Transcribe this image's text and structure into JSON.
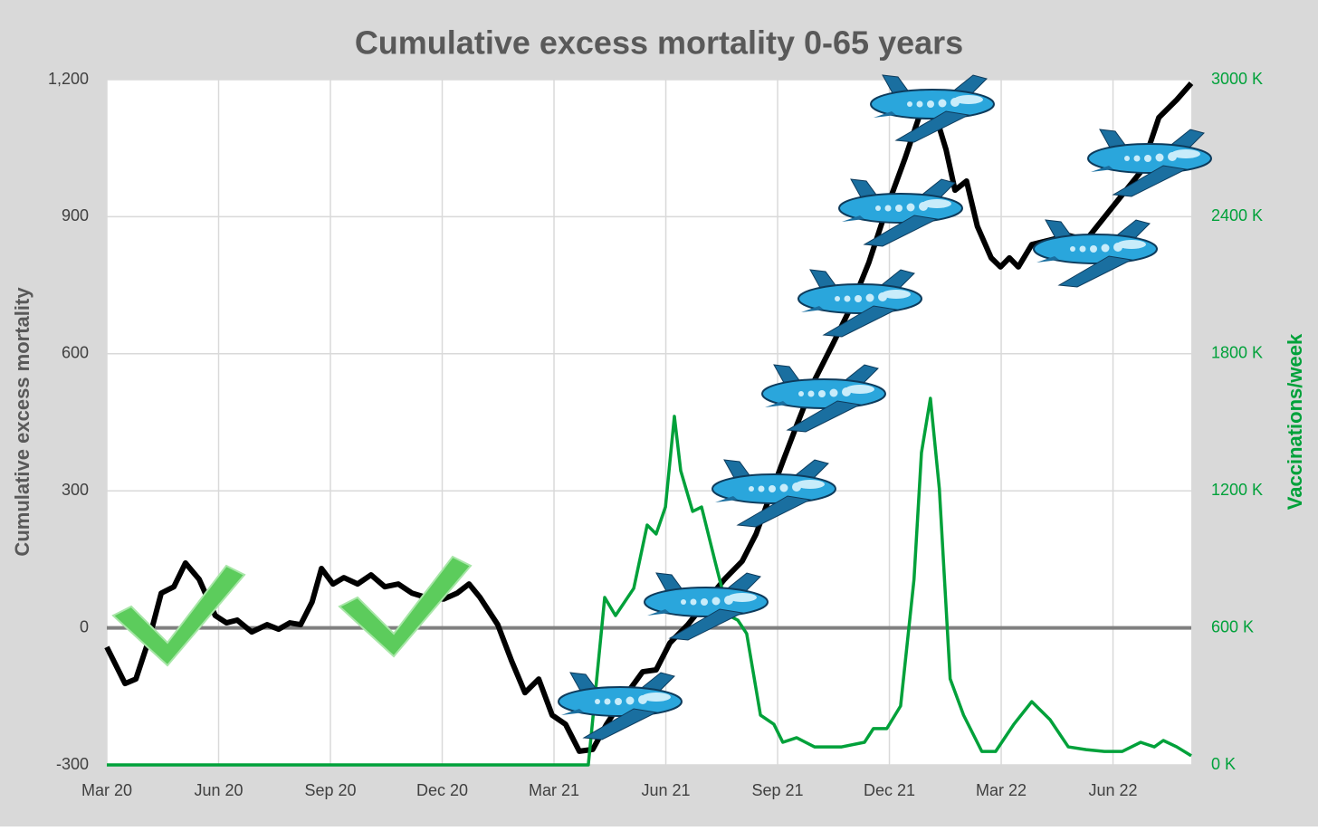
{
  "chart_data": {
    "type": "line",
    "title": "Cumulative excess mortality 0-65 years",
    "ylabel": "Cumulative excess mortality",
    "y2label": "Vaccinations/week",
    "xlim": [
      0,
      29.1
    ],
    "xticks": [
      {
        "value": 0,
        "label": "Mar 20"
      },
      {
        "value": 3,
        "label": "Jun 20"
      },
      {
        "value": 6,
        "label": "Sep 20"
      },
      {
        "value": 9,
        "label": "Dec 20"
      },
      {
        "value": 12,
        "label": "Mar 21"
      },
      {
        "value": 15,
        "label": "Jun 21"
      },
      {
        "value": 18,
        "label": "Sep 21"
      },
      {
        "value": 21,
        "label": "Dec 21"
      },
      {
        "value": 24,
        "label": "Mar 22"
      },
      {
        "value": 27,
        "label": "Jun 22"
      }
    ],
    "ylim": [
      -300,
      1200
    ],
    "yticks": [
      -300,
      0,
      300,
      600,
      900,
      {
        "value": 1200,
        "label": "1,200"
      }
    ],
    "y2lim": [
      0,
      3000
    ],
    "y2ticks": [
      {
        "value": 0,
        "label": "0 K"
      },
      {
        "value": 600,
        "label": "600 K"
      },
      {
        "value": 1200,
        "label": "1200 K"
      },
      {
        "value": 1800,
        "label": "1800 K"
      },
      {
        "value": 2400,
        "label": "2400 K"
      },
      {
        "value": 3000,
        "label": "3000 K"
      }
    ],
    "grid": true,
    "series": [
      {
        "color": "#000000",
        "axis": "y",
        "x": [
          0,
          0.49,
          0.78,
          1.14,
          1.46,
          1.8,
          2.11,
          2.48,
          2.91,
          3.21,
          3.5,
          3.89,
          4.3,
          4.61,
          4.91,
          5.2,
          5.51,
          5.76,
          6.07,
          6.36,
          6.73,
          7.09,
          7.46,
          7.82,
          8.19,
          8.55,
          9.04,
          9.4,
          9.72,
          10.01,
          10.49,
          10.86,
          11.22,
          11.59,
          11.95,
          12.31,
          12.68,
          13.04,
          13.41,
          13.89,
          14.38,
          14.74,
          15.11,
          15.59,
          16.08,
          16.57,
          17.05,
          17.42,
          17.78,
          18.14,
          18.51,
          18.99,
          19.48,
          19.96,
          20.45,
          20.93,
          21.42,
          21.79,
          22.15,
          22.52,
          22.76,
          23.07,
          23.36,
          23.73,
          23.98,
          24.22,
          24.46,
          24.82,
          25.31,
          25.8,
          26.28,
          26.77,
          27.25,
          27.74,
          28.23,
          28.71,
          29.1
        ],
        "values": [
          -42,
          -122,
          -112,
          -23,
          76,
          90,
          142,
          106,
          27,
          11,
          17,
          -9,
          7,
          -3,
          11,
          7,
          57,
          130,
          96,
          110,
          96,
          116,
          90,
          96,
          76,
          67,
          63,
          76,
          96,
          67,
          7,
          -72,
          -142,
          -112,
          -191,
          -211,
          -270,
          -266,
          -211,
          -151,
          -96,
          -92,
          -33,
          7,
          57,
          106,
          146,
          205,
          285,
          364,
          443,
          542,
          621,
          701,
          800,
          919,
          1028,
          1117,
          1146,
          1047,
          958,
          978,
          879,
          810,
          790,
          810,
          790,
          839,
          849,
          859,
          849,
          899,
          948,
          998,
          1117,
          1156,
          1192
        ]
      },
      {
        "color": "#00a13a",
        "axis": "y2",
        "x": [
          0,
          12.92,
          13.36,
          13.65,
          14.14,
          14.5,
          14.74,
          14.99,
          15.23,
          15.4,
          15.72,
          15.96,
          16.32,
          16.69,
          16.93,
          17.17,
          17.54,
          17.9,
          18.14,
          18.51,
          18.99,
          19.72,
          20.33,
          20.57,
          20.93,
          21.3,
          21.66,
          21.86,
          22.1,
          22.34,
          22.63,
          22.99,
          23.48,
          23.85,
          24.34,
          24.82,
          25.31,
          25.8,
          26.28,
          26.77,
          27.25,
          27.74,
          28.11,
          28.35,
          28.71,
          29.1
        ],
        "values": [
          0,
          0,
          733,
          654,
          773,
          1050,
          1011,
          1129,
          1526,
          1288,
          1110,
          1129,
          892,
          654,
          634,
          575,
          218,
          178,
          99,
          119,
          79,
          79,
          99,
          159,
          159,
          258,
          812,
          1367,
          1605,
          1209,
          377,
          218,
          59,
          59,
          178,
          277,
          198,
          79,
          67,
          59,
          59,
          99,
          79,
          107,
          79,
          40
        ]
      }
    ]
  }
}
